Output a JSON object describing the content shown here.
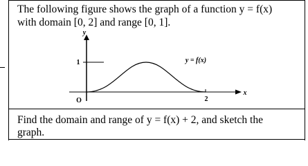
{
  "question": {
    "intro_lines": [
      "The following figure shows the graph of a function y = f(x)",
      "with domain [0, 2] and range [0, 1]."
    ],
    "figure": {
      "y_axis_label": "y",
      "x_axis_label": "x",
      "y_tick": "1",
      "origin": "O",
      "x_tick": "2",
      "curve_label": "y = f(x)"
    },
    "task_lines": [
      "Find the domain and range of y = f(x) + 2, and sketch the",
      "graph."
    ]
  }
}
